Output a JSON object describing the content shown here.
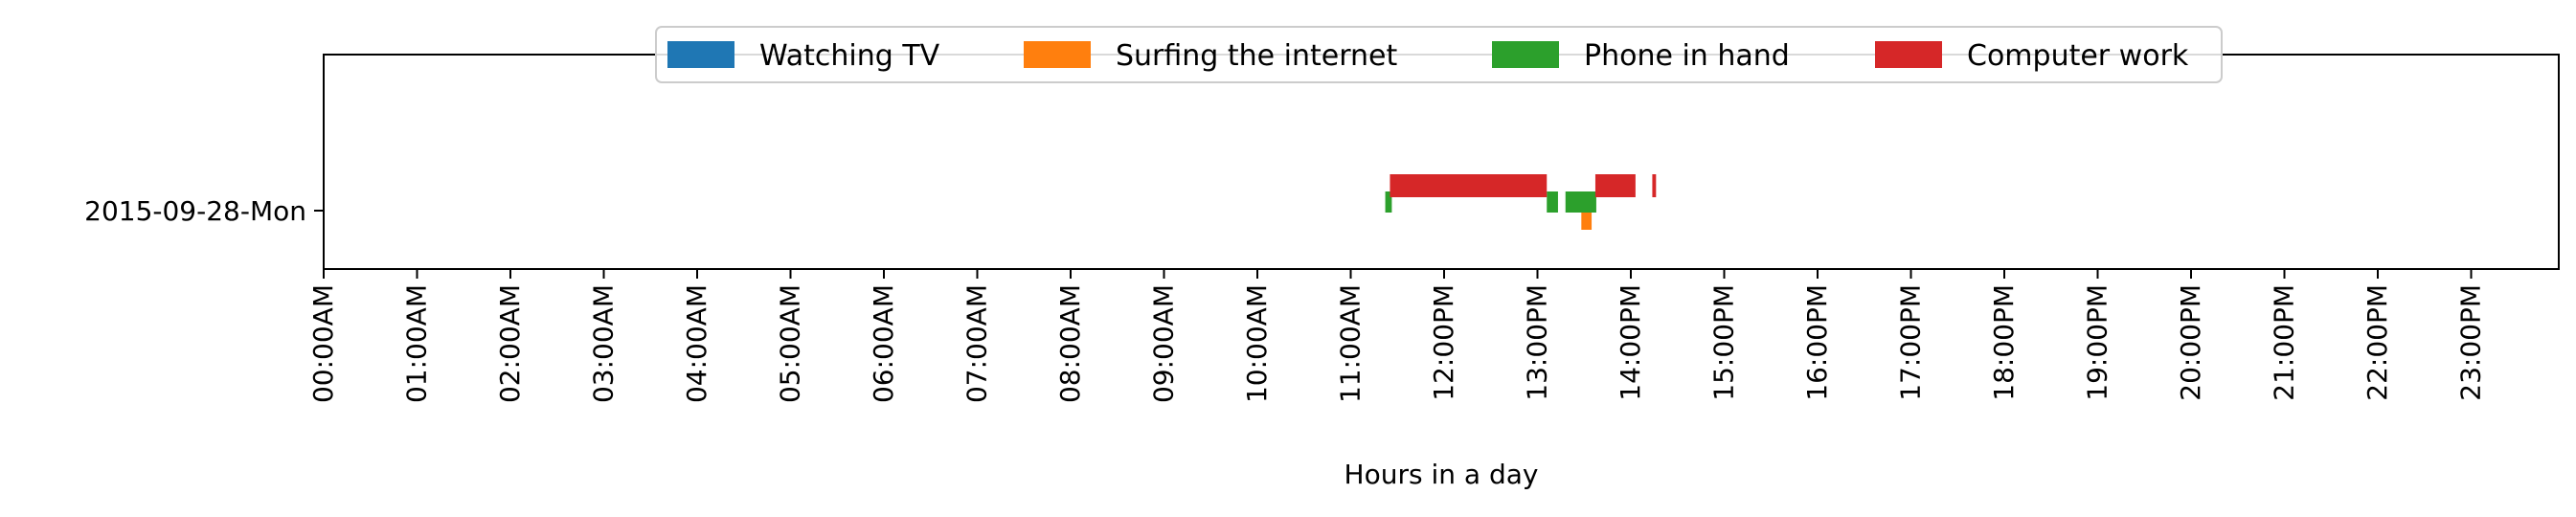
{
  "chart_data": {
    "type": "bar",
    "orientation": "horizontal-timeline",
    "title": "",
    "xlabel": "Hours in a day",
    "ylabel": "",
    "xlim": [
      0,
      24
    ],
    "grid": false,
    "legend_placement": "top-center",
    "categories": [
      "2015-09-28-Mon"
    ],
    "x_tick_labels": [
      "00:00AM",
      "01:00AM",
      "02:00AM",
      "03:00AM",
      "04:00AM",
      "05:00AM",
      "06:00AM",
      "07:00AM",
      "08:00AM",
      "09:00AM",
      "10:00AM",
      "11:00AM",
      "12:00PM",
      "13:00PM",
      "14:00PM",
      "15:00PM",
      "16:00PM",
      "17:00PM",
      "18:00PM",
      "19:00PM",
      "20:00PM",
      "21:00PM",
      "22:00PM",
      "23:00PM"
    ],
    "series": [
      {
        "name": "Watching TV",
        "color": "#1f77b4",
        "intervals": []
      },
      {
        "name": "Surfing the internet",
        "color": "#ff7f0e",
        "intervals": [
          [
            13.47,
            13.58
          ]
        ]
      },
      {
        "name": "Phone in hand",
        "color": "#2ca02c",
        "intervals": [
          [
            11.37,
            11.44
          ],
          [
            13.1,
            13.22
          ],
          [
            13.3,
            13.63
          ]
        ]
      },
      {
        "name": "Computer work",
        "color": "#d62728",
        "intervals": [
          [
            11.42,
            13.1
          ],
          [
            13.62,
            14.05
          ],
          [
            14.23,
            14.27
          ]
        ]
      }
    ]
  }
}
